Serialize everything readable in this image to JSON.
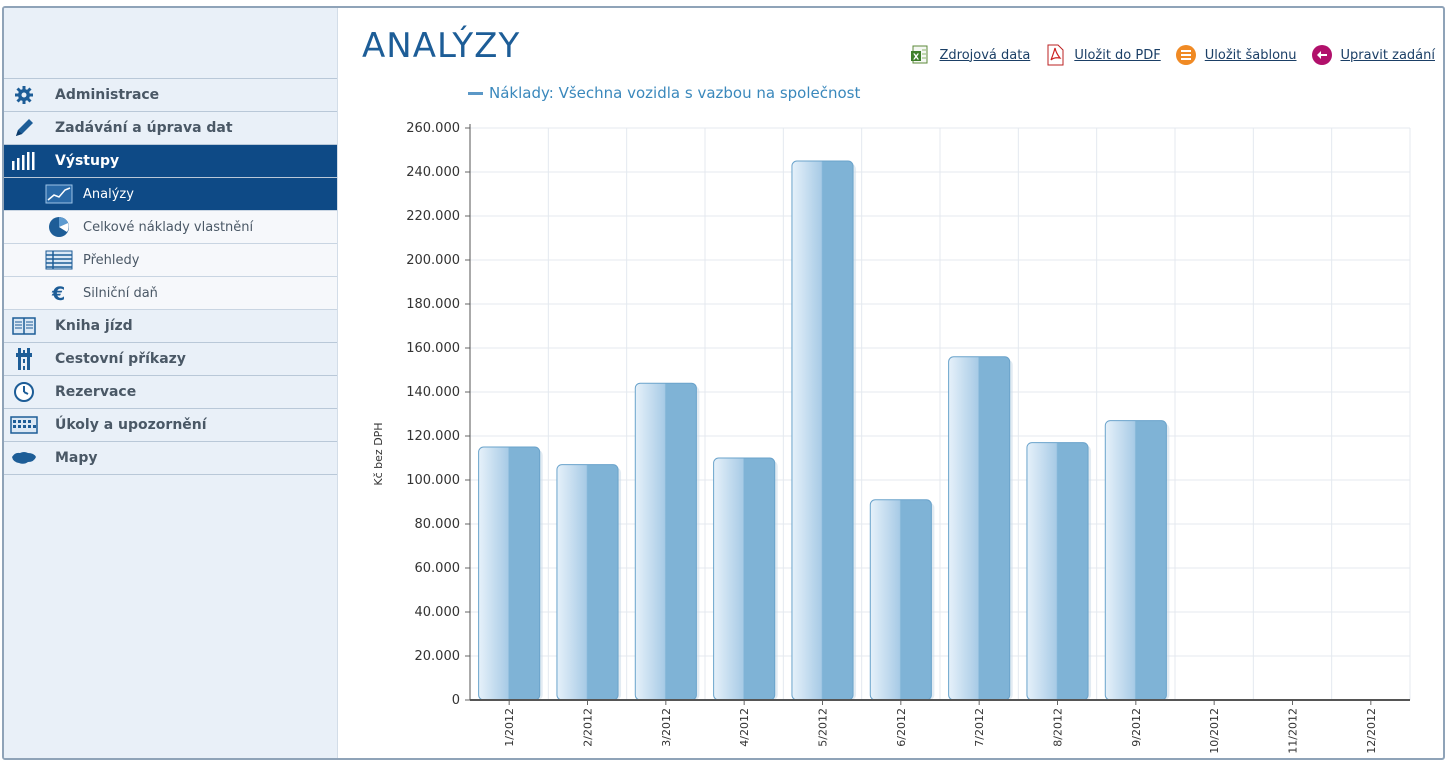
{
  "page": {
    "title": "ANALÝZY"
  },
  "toolbar": {
    "source_label": "Zdrojová data",
    "pdf_label": "Uložit do PDF",
    "template_label": "Uložit šablonu",
    "edit_label": "Upravit zadání"
  },
  "sidebar": {
    "items": [
      {
        "label": "Administrace",
        "icon": "gear-icon"
      },
      {
        "label": "Zadávání a úprava dat",
        "icon": "pencil-icon"
      },
      {
        "label": "Výstupy",
        "icon": "bar-chart-icon",
        "active": true,
        "children": [
          {
            "label": "Analýzy",
            "icon": "line-chart-icon",
            "active": true
          },
          {
            "label": "Celkové náklady vlastnění",
            "icon": "pie-chart-icon"
          },
          {
            "label": "Přehledy",
            "icon": "table-icon"
          },
          {
            "label": "Silniční daň",
            "icon": "euro-icon"
          }
        ]
      },
      {
        "label": "Kniha jízd",
        "icon": "book-icon"
      },
      {
        "label": "Cestovní příkazy",
        "icon": "road-icon"
      },
      {
        "label": "Rezervace",
        "icon": "clock-icon"
      },
      {
        "label": "Úkoly a upozornění",
        "icon": "calendar-icon"
      },
      {
        "label": "Mapy",
        "icon": "map-icon"
      }
    ]
  },
  "colors": {
    "accent": "#0e4a86",
    "bar": "#7fb3d6",
    "title": "#1d5d97"
  },
  "chart_data": {
    "type": "bar",
    "title": "",
    "legend": [
      "Náklady: Všechna vozidla  s vazbou na společnost"
    ],
    "ylabel": "Kč bez DPH",
    "xlabel": "",
    "ylim": [
      0,
      260000
    ],
    "yticks": [
      "0",
      "20.000",
      "40.000",
      "60.000",
      "80.000",
      "100.000",
      "120.000",
      "140.000",
      "160.000",
      "180.000",
      "200.000",
      "220.000",
      "240.000",
      "260.000"
    ],
    "categories": [
      "1/2012",
      "2/2012",
      "3/2012",
      "4/2012",
      "5/2012",
      "6/2012",
      "7/2012",
      "8/2012",
      "9/2012",
      "10/2012",
      "11/2012",
      "12/2012"
    ],
    "series": [
      {
        "name": "Náklady: Všechna vozidla  s vazbou na společnost",
        "values": [
          115000,
          107000,
          144000,
          110000,
          245000,
          91000,
          156000,
          117000,
          127000,
          null,
          null,
          null
        ]
      }
    ],
    "grid": true,
    "legend_position": "top-left"
  }
}
